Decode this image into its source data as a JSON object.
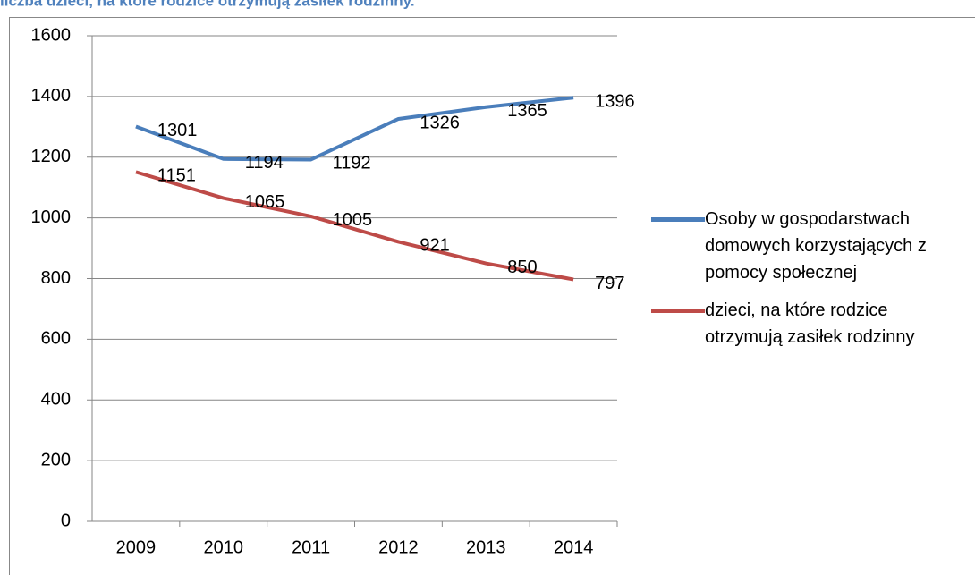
{
  "chart_data": {
    "type": "line",
    "title": "liczba dzieci, na które rodzice otrzymują zasiłek rodzinny.",
    "categories": [
      "2009",
      "2010",
      "2011",
      "2012",
      "2013",
      "2014"
    ],
    "series": [
      {
        "name": "Osoby w gospodarstwach domowych korzystających z pomocy społecznej",
        "color": "#4a7ebb",
        "values": [
          1301,
          1194,
          1192,
          1326,
          1365,
          1396
        ]
      },
      {
        "name": "dzieci, na które rodzice otrzymują zasiłek rodzinny",
        "color": "#be4b48",
        "values": [
          1151,
          1065,
          1005,
          921,
          850,
          797
        ]
      }
    ],
    "ylim": [
      0,
      1600
    ],
    "yticks": [
      0,
      200,
      400,
      600,
      800,
      1000,
      1200,
      1400,
      1600
    ],
    "grid": true,
    "legend": "right"
  }
}
